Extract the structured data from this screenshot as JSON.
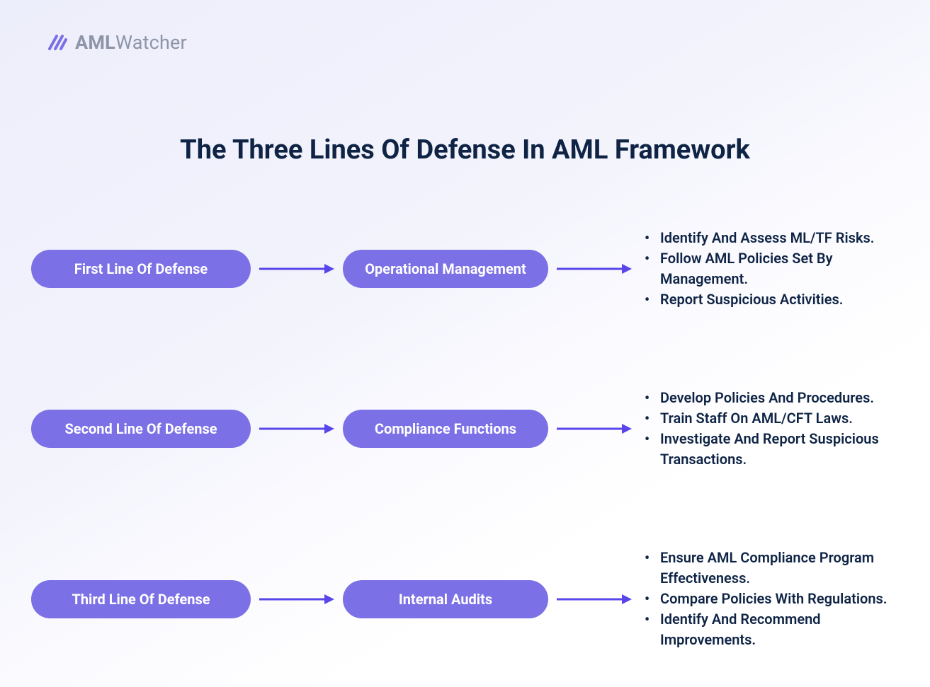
{
  "brand": {
    "name_bold": "AML",
    "name_rest": "Watcher",
    "logo_color": "#7b70e6",
    "text_color": "#8d95a8"
  },
  "title": "The Three Lines Of Defense In AML Framework",
  "style": {
    "title_color": "#0f2445",
    "title_fontsize": 38,
    "pill_color": "#7b70e6",
    "pill_text_color": "#ffffff",
    "pill_fontsize": 20,
    "pill_height": 54,
    "pill_radius": 27,
    "arrow_color": "#5846ea",
    "arrow_stroke_width": 3,
    "bullet_color": "#0f2445",
    "bullet_fontsize": 20,
    "background_gradient_from": "#edeefb",
    "background_gradient_to": "#ffffff",
    "row_gap": 110
  },
  "rows": [
    {
      "label": "First Line Of Defense",
      "function": "Operational Management",
      "bullets": [
        "Identify And Assess ML/TF Risks.",
        "Follow AML Policies Set By Management.",
        "Report Suspicious Activities."
      ]
    },
    {
      "label": "Second Line Of Defense",
      "function": "Compliance Functions",
      "bullets": [
        "Develop Policies And Procedures.",
        "Train Staff On AML/CFT Laws.",
        "Investigate And Report Suspicious Transactions."
      ]
    },
    {
      "label": "Third Line Of Defense",
      "function": "Internal Audits",
      "bullets": [
        "Ensure AML Compliance Program Effectiveness.",
        "Compare Policies With Regulations.",
        "Identify And Recommend Improvements."
      ]
    }
  ]
}
